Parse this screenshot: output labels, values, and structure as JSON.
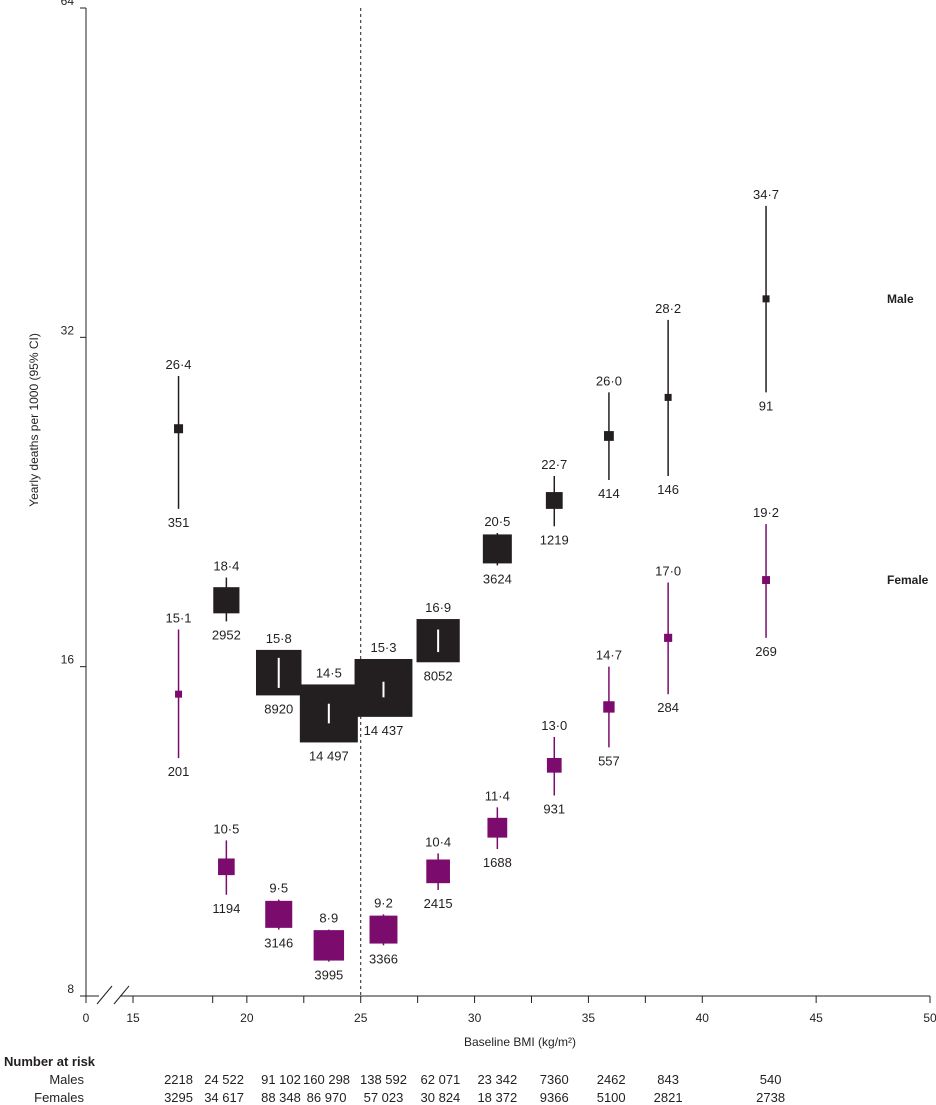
{
  "chart_data": {
    "type": "scatter",
    "title": "",
    "xlabel": "Baseline BMI (kg/m²)",
    "ylabel": "Yearly deaths per 1000 (95% CI)",
    "y_scale": "log2",
    "ylim": [
      8,
      64
    ],
    "xlim": [
      15,
      50
    ],
    "x_axis_break": true,
    "y_ticks": [
      "8",
      "16",
      "32",
      "64"
    ],
    "x_ticks": [
      "0",
      "15",
      "20",
      "25",
      "30",
      "35",
      "40",
      "45",
      "50"
    ],
    "reference_line_x": 25,
    "bmi_group_centers": [
      17,
      19,
      21.5,
      23.5,
      26,
      28.5,
      31,
      33.5,
      36,
      38.5,
      43
    ],
    "series": [
      {
        "name": "Male",
        "color": "#231f20",
        "points": [
          {
            "x": 17.0,
            "y": 26.4,
            "y_low": 22.3,
            "y_high": 29.5,
            "label": "26·4",
            "deaths": "351"
          },
          {
            "x": 19.1,
            "y": 18.4,
            "y_low": 17.6,
            "y_high": 19.3,
            "label": "18·4",
            "deaths": "2952"
          },
          {
            "x": 21.4,
            "y": 15.8,
            "y_low": 15.3,
            "y_high": 16.3,
            "label": "15·8",
            "deaths": "8920"
          },
          {
            "x": 23.6,
            "y": 14.5,
            "y_low": 14.2,
            "y_high": 14.8,
            "label": "14·5",
            "deaths": "14 497"
          },
          {
            "x": 26.0,
            "y": 15.3,
            "y_low": 15.0,
            "y_high": 15.5,
            "label": "15·3",
            "deaths": "14 437"
          },
          {
            "x": 28.4,
            "y": 16.9,
            "y_low": 16.5,
            "y_high": 17.3,
            "label": "16·9",
            "deaths": "8052"
          },
          {
            "x": 31.0,
            "y": 20.5,
            "y_low": 19.8,
            "y_high": 21.2,
            "label": "20·5",
            "deaths": "3624"
          },
          {
            "x": 33.5,
            "y": 22.7,
            "y_low": 21.5,
            "y_high": 23.9,
            "label": "22·7",
            "deaths": "1219"
          },
          {
            "x": 35.9,
            "y": 26.0,
            "y_low": 23.7,
            "y_high": 28.5,
            "label": "26·0",
            "deaths": "414"
          },
          {
            "x": 38.5,
            "y": 28.2,
            "y_low": 23.9,
            "y_high": 33.2,
            "label": "28·2",
            "deaths": "146"
          },
          {
            "x": 42.8,
            "y": 34.7,
            "y_low": 28.5,
            "y_high": 42.2,
            "label": "34·7",
            "deaths": "91"
          }
        ]
      },
      {
        "name": "Female",
        "color": "#7b0c6e",
        "points": [
          {
            "x": 17.0,
            "y": 15.1,
            "y_low": 13.2,
            "y_high": 17.3,
            "label": "15·1",
            "deaths": "201"
          },
          {
            "x": 19.1,
            "y": 10.5,
            "y_low": 9.9,
            "y_high": 11.1,
            "label": "10·5",
            "deaths": "1194"
          },
          {
            "x": 21.4,
            "y": 9.5,
            "y_low": 9.2,
            "y_high": 9.8,
            "label": "9·5",
            "deaths": "3146"
          },
          {
            "x": 23.6,
            "y": 8.9,
            "y_low": 8.6,
            "y_high": 9.2,
            "label": "8·9",
            "deaths": "3995"
          },
          {
            "x": 26.0,
            "y": 9.2,
            "y_low": 8.9,
            "y_high": 9.5,
            "label": "9·2",
            "deaths": "3366"
          },
          {
            "x": 28.4,
            "y": 10.4,
            "y_low": 10.0,
            "y_high": 10.8,
            "label": "10·4",
            "deaths": "2415"
          },
          {
            "x": 31.0,
            "y": 11.4,
            "y_low": 10.9,
            "y_high": 11.9,
            "label": "11·4",
            "deaths": "1688"
          },
          {
            "x": 33.5,
            "y": 13.0,
            "y_low": 12.2,
            "y_high": 13.8,
            "label": "13·0",
            "deaths": "931"
          },
          {
            "x": 35.9,
            "y": 14.7,
            "y_low": 13.5,
            "y_high": 16.0,
            "label": "14·7",
            "deaths": "557"
          },
          {
            "x": 38.5,
            "y": 17.0,
            "y_low": 15.1,
            "y_high": 19.1,
            "label": "17·0",
            "deaths": "284"
          },
          {
            "x": 42.8,
            "y": 19.2,
            "y_low": 17.0,
            "y_high": 21.6,
            "label": "19·2",
            "deaths": "269"
          }
        ]
      }
    ],
    "number_at_risk": {
      "heading": "Number at risk",
      "rows": [
        {
          "label": "Males",
          "values": [
            "2218",
            "24 522",
            "91 102",
            "160 298",
            "138 592",
            "62 071",
            "23 342",
            "7360",
            "2462",
            "843",
            "540"
          ]
        },
        {
          "label": "Females",
          "values": [
            "3295",
            "34 617",
            "88 348",
            "86 970",
            "57 023",
            "30 824",
            "18 372",
            "9366",
            "5100",
            "2821",
            "2738"
          ]
        }
      ]
    }
  }
}
